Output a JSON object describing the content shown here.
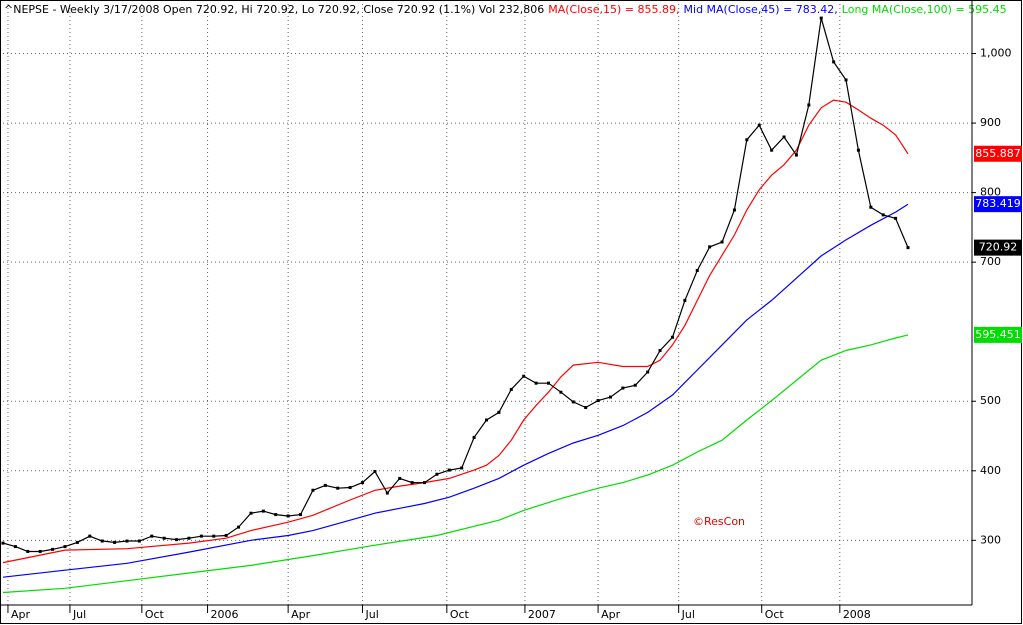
{
  "chart_data": {
    "type": "line",
    "title": "^NEPSE - Weekly 3/17/2008 Open 720.92, Hi 720.92, Lo 720.92, Close 720.92 (1.1%) Vol 232,806",
    "annotation": "©ResCon",
    "xlim": [
      0,
      156
    ],
    "xticks": [
      {
        "value": 0.8,
        "label": "Apr"
      },
      {
        "value": 10.8,
        "label": "Jul"
      },
      {
        "value": 22.4,
        "label": "Oct"
      },
      {
        "value": 33,
        "label": "2006"
      },
      {
        "value": 46,
        "label": "Apr"
      },
      {
        "value": 58,
        "label": "Jul"
      },
      {
        "value": 71.6,
        "label": "Oct"
      },
      {
        "value": 84.2,
        "label": "2007"
      },
      {
        "value": 96,
        "label": "Apr"
      },
      {
        "value": 109,
        "label": "Jul"
      },
      {
        "value": 122.4,
        "label": "Oct"
      },
      {
        "value": 135,
        "label": "2008"
      }
    ],
    "ylim": [
      207,
      1077
    ],
    "yticks": [
      300,
      400,
      500,
      700,
      800,
      900,
      {
        "value": 1000,
        "label": "1,000"
      }
    ],
    "grid": true,
    "series": [
      {
        "name": "Close",
        "color": "#000000",
        "markers": true,
        "end_label": "720.92",
        "x": [
          0,
          2,
          4,
          6,
          8,
          10,
          12,
          14,
          16,
          18,
          20,
          22,
          24,
          26,
          28,
          30,
          32,
          34,
          36,
          38,
          40,
          42,
          44,
          46,
          48,
          50,
          52,
          54,
          56,
          58,
          60,
          62,
          64,
          66,
          68,
          70,
          72,
          74,
          76,
          78,
          80,
          82,
          84,
          86,
          88,
          90,
          92,
          94,
          96,
          98,
          100,
          102,
          104,
          106,
          108,
          110,
          112,
          114,
          116,
          118,
          120,
          122,
          124,
          126,
          128,
          130,
          132,
          134,
          136,
          138,
          140,
          142,
          144,
          146
        ],
        "values": [
          296,
          291,
          284,
          284,
          287,
          291,
          297,
          306,
          299,
          297,
          299,
          299,
          306,
          303,
          301,
          303,
          306,
          306,
          307,
          319,
          339,
          342,
          337,
          335,
          337,
          372,
          379,
          375,
          376,
          383,
          399,
          368,
          389,
          383,
          383,
          395,
          401,
          404,
          448,
          473,
          484,
          517,
          536,
          526,
          526,
          513,
          499,
          491,
          501,
          506,
          519,
          523,
          542,
          573,
          592,
          645,
          688,
          722,
          729,
          775,
          876,
          897,
          861,
          880,
          854,
          926,
          1051,
          988,
          962,
          861,
          779,
          768,
          763,
          720.92
        ]
      },
      {
        "name": "MA(Close,15)",
        "legend_label": "MA(Close,15) = 855.89,",
        "color": "#ff0000",
        "end_label": "855.887",
        "x": [
          0,
          10,
          20,
          30,
          36,
          40,
          46,
          50,
          56,
          60,
          64,
          68,
          72,
          76,
          78,
          80,
          82,
          84,
          86,
          88,
          90,
          92,
          96,
          100,
          104,
          106,
          108,
          110,
          112,
          114,
          116,
          118,
          120,
          122,
          124,
          126,
          128,
          130,
          132,
          134,
          136,
          138,
          140,
          142,
          144,
          146
        ],
        "values": [
          268,
          286,
          288,
          296,
          303,
          314,
          326,
          336,
          358,
          372,
          378,
          383,
          389,
          401,
          408,
          422,
          444,
          473,
          494,
          513,
          535,
          552,
          556,
          550,
          550,
          559,
          581,
          609,
          645,
          681,
          710,
          739,
          775,
          804,
          825,
          840,
          861,
          897,
          922,
          933,
          930,
          919,
          907,
          897,
          883,
          855.887
        ]
      },
      {
        "name": "Mid MA(Close,45)",
        "legend_label": "Mid MA(Close,45) = 783.42,",
        "color": "#0000ff",
        "end_label": "783.419",
        "x": [
          0,
          10,
          20,
          30,
          40,
          46,
          50,
          56,
          60,
          64,
          68,
          72,
          76,
          80,
          84,
          88,
          92,
          96,
          100,
          104,
          108,
          112,
          116,
          120,
          124,
          128,
          132,
          136,
          140,
          144,
          146
        ],
        "values": [
          247,
          257,
          267,
          283,
          300,
          307,
          314,
          329,
          339,
          346,
          353,
          362,
          375,
          389,
          408,
          425,
          440,
          451,
          465,
          484,
          509,
          545,
          581,
          617,
          645,
          677,
          709,
          732,
          753,
          772,
          783.419
        ]
      },
      {
        "name": "Long MA(Close,100)",
        "legend_label": "Long MA(Close,100) = 595.45",
        "color": "#00dd00",
        "end_label": "595.451",
        "x": [
          0,
          10,
          20,
          30,
          40,
          50,
          60,
          70,
          80,
          84,
          90,
          96,
          100,
          104,
          108,
          112,
          116,
          120,
          124,
          128,
          132,
          136,
          140,
          144,
          146
        ],
        "values": [
          225,
          231,
          242,
          253,
          264,
          278,
          293,
          307,
          329,
          343,
          360,
          375,
          383,
          394,
          408,
          427,
          444,
          473,
          501,
          530,
          559,
          573,
          581,
          591,
          595.451
        ]
      }
    ]
  }
}
